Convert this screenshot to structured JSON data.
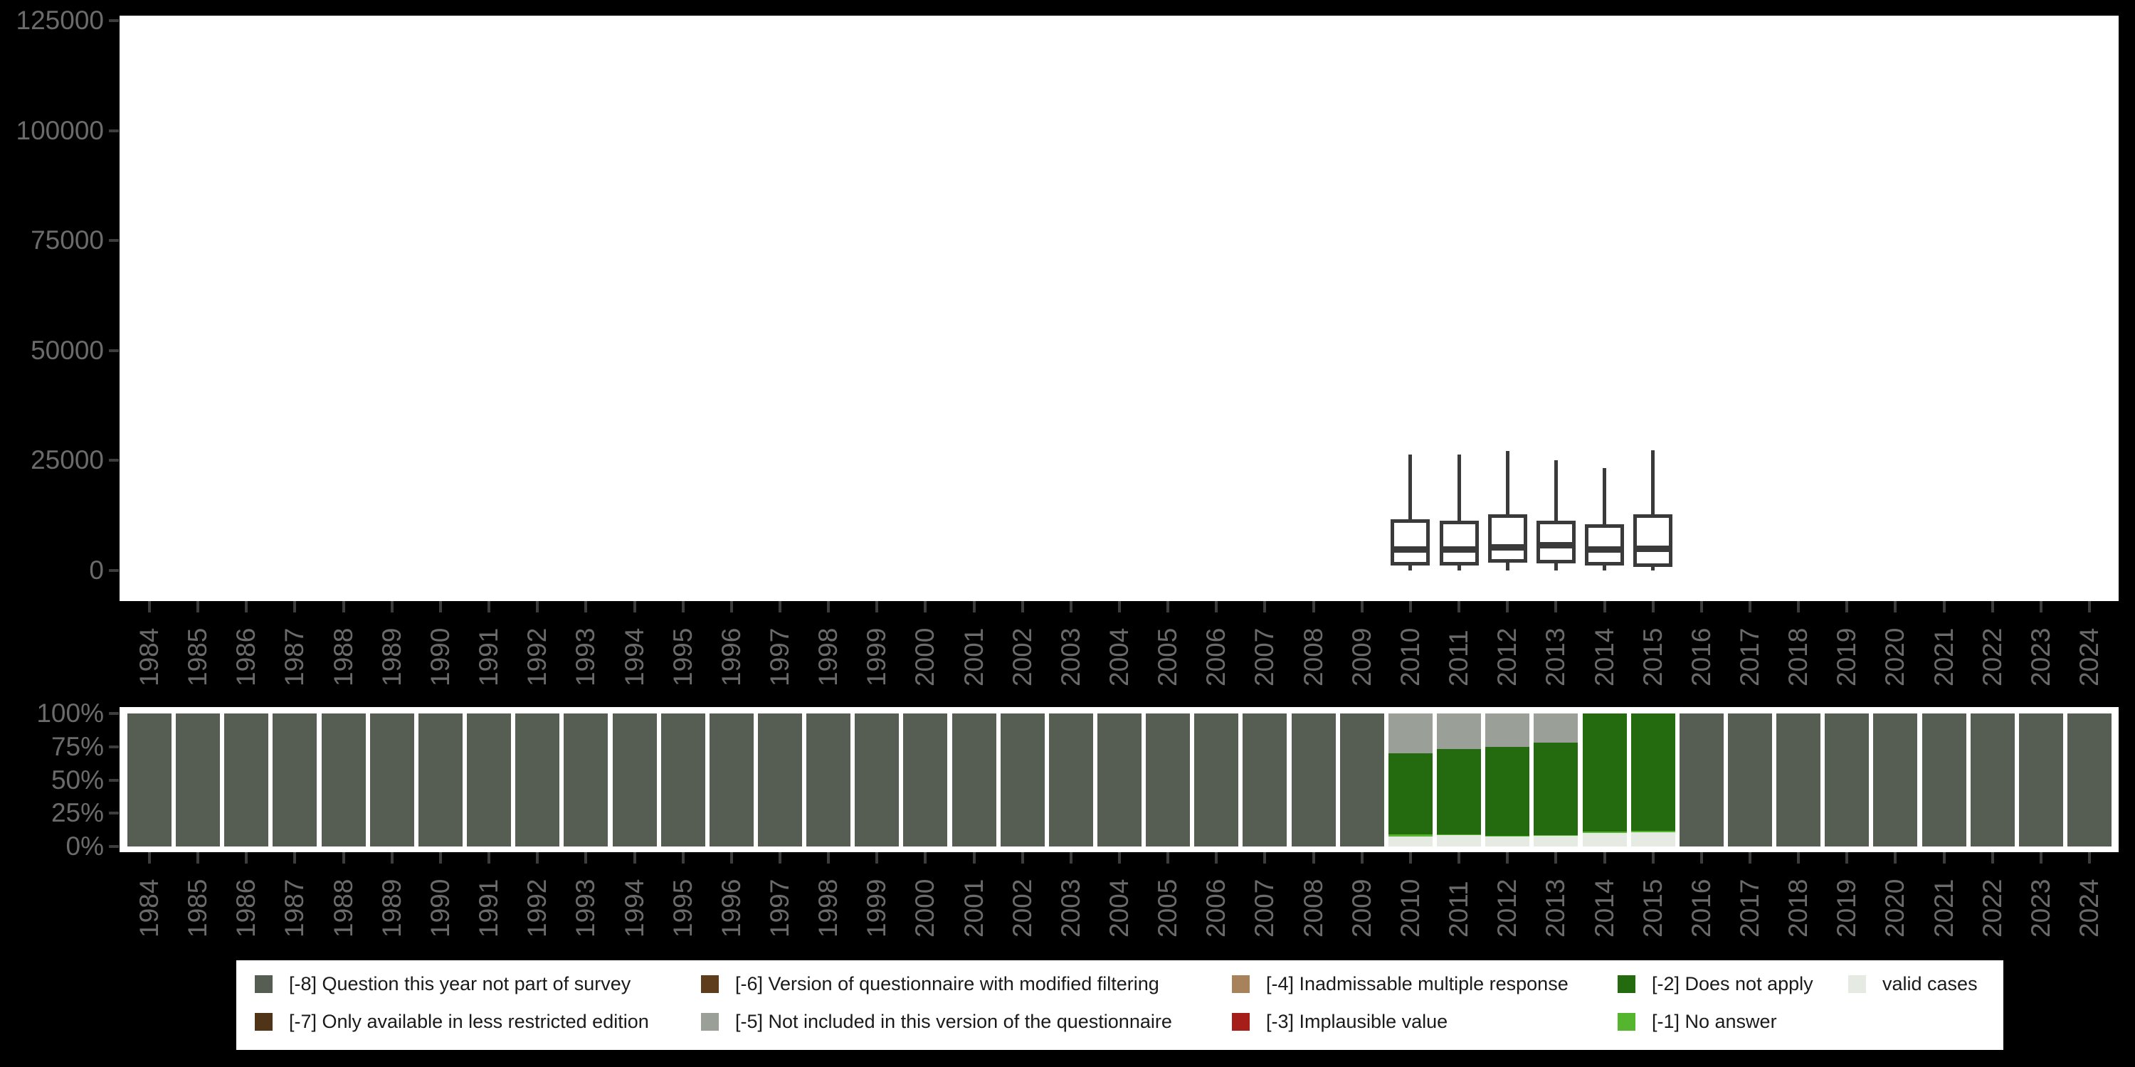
{
  "colors": {
    "background": "#000000",
    "plot_background": "#ffffff",
    "axis_label": "#6b6b6b",
    "tick": "#3d3d3d",
    "box_stroke": "#3a3a3a",
    "legend_background": "#ffffff",
    "legend_text": "#1a1a1a"
  },
  "chart_data": [
    {
      "type": "boxplot",
      "title": "",
      "xlabel": "",
      "ylabel": "",
      "y_ticks": [
        "0",
        "25000",
        "50000",
        "75000",
        "100000",
        "125000"
      ],
      "y_tick_values": [
        0,
        25000,
        50000,
        75000,
        100000,
        125000
      ],
      "ylim": [
        0,
        131000
      ],
      "grid": "off",
      "categories": [
        "1984",
        "1985",
        "1986",
        "1987",
        "1988",
        "1989",
        "1990",
        "1991",
        "1992",
        "1993",
        "1994",
        "1995",
        "1996",
        "1997",
        "1998",
        "1999",
        "2000",
        "2001",
        "2002",
        "2003",
        "2004",
        "2005",
        "2006",
        "2007",
        "2008",
        "2009",
        "2010",
        "2011",
        "2012",
        "2013",
        "2014",
        "2015",
        "2016",
        "2017",
        "2018",
        "2019",
        "2020",
        "2021",
        "2022",
        "2023",
        "2024"
      ],
      "boxes": [
        {
          "year": "2010",
          "min": 0,
          "q1": 1100,
          "median": 4700,
          "q3": 11600,
          "max": 26400
        },
        {
          "year": "2011",
          "min": 0,
          "q1": 1100,
          "median": 4700,
          "q3": 11300,
          "max": 26400
        },
        {
          "year": "2012",
          "min": 0,
          "q1": 1800,
          "median": 5200,
          "q3": 12700,
          "max": 27200
        },
        {
          "year": "2013",
          "min": 0,
          "q1": 1600,
          "median": 5800,
          "q3": 11300,
          "max": 25100
        },
        {
          "year": "2014",
          "min": 0,
          "q1": 1100,
          "median": 4700,
          "q3": 10500,
          "max": 23300
        },
        {
          "year": "2015",
          "min": 0,
          "q1": 800,
          "median": 5000,
          "q3": 12700,
          "max": 27400
        }
      ]
    },
    {
      "type": "bar",
      "subtype": "stacked-percent",
      "title": "",
      "xlabel": "",
      "ylabel": "",
      "y_ticks": [
        "0%",
        "25%",
        "50%",
        "75%",
        "100%"
      ],
      "y_tick_values": [
        0,
        25,
        50,
        75,
        100
      ],
      "ylim": [
        0,
        100
      ],
      "grid": "off",
      "stack_order": "bottom_to_top",
      "categories": [
        "1984",
        "1985",
        "1986",
        "1987",
        "1988",
        "1989",
        "1990",
        "1991",
        "1992",
        "1993",
        "1994",
        "1995",
        "1996",
        "1997",
        "1998",
        "1999",
        "2000",
        "2001",
        "2002",
        "2003",
        "2004",
        "2005",
        "2006",
        "2007",
        "2008",
        "2009",
        "2010",
        "2011",
        "2012",
        "2013",
        "2014",
        "2015",
        "2016",
        "2017",
        "2018",
        "2019",
        "2020",
        "2021",
        "2022",
        "2023",
        "2024"
      ],
      "series": [
        {
          "key": "valid",
          "name": "valid cases",
          "color": "#e5eae2",
          "values": [
            0,
            0,
            0,
            0,
            0,
            0,
            0,
            0,
            0,
            0,
            0,
            0,
            0,
            0,
            0,
            0,
            0,
            0,
            0,
            0,
            0,
            0,
            0,
            0,
            0,
            0,
            7.6,
            8.5,
            7.5,
            8.0,
            10.0,
            10.5,
            0,
            0,
            0,
            0,
            0,
            0,
            0,
            0,
            0
          ]
        },
        {
          "key": "no_answer",
          "name": "[-1] No answer",
          "color": "#56b52f",
          "values": [
            0,
            0,
            0,
            0,
            0,
            0,
            0,
            0,
            0,
            0,
            0,
            0,
            0,
            0,
            0,
            0,
            0,
            0,
            0,
            0,
            0,
            0,
            0,
            0,
            0,
            0,
            1.5,
            0.8,
            0.6,
            0.8,
            1.3,
            1.4,
            0,
            0,
            0,
            0,
            0,
            0,
            0,
            0,
            0
          ]
        },
        {
          "key": "does_not_apply",
          "name": "[-2] Does not apply",
          "color": "#246b10",
          "values": [
            0,
            0,
            0,
            0,
            0,
            0,
            0,
            0,
            0,
            0,
            0,
            0,
            0,
            0,
            0,
            0,
            0,
            0,
            0,
            0,
            0,
            0,
            0,
            0,
            0,
            0,
            60.9,
            63.7,
            66.9,
            69.2,
            88.7,
            88.1,
            0,
            0,
            0,
            0,
            0,
            0,
            0,
            0,
            0
          ]
        },
        {
          "key": "not_included",
          "name": "[-5] Not included in this version of the questionnaire",
          "color": "#9a9f97",
          "values": [
            0,
            0,
            0,
            0,
            0,
            0,
            0,
            0,
            0,
            0,
            0,
            0,
            0,
            0,
            0,
            0,
            0,
            0,
            0,
            0,
            0,
            0,
            0,
            0,
            0,
            0,
            30,
            27,
            25,
            22,
            0,
            0,
            0,
            0,
            0,
            0,
            0,
            0,
            0,
            0,
            0
          ]
        },
        {
          "key": "not_part_of_survey",
          "name": "[-8] Question this year not part of survey",
          "color": "#565e54",
          "values": [
            100,
            100,
            100,
            100,
            100,
            100,
            100,
            100,
            100,
            100,
            100,
            100,
            100,
            100,
            100,
            100,
            100,
            100,
            100,
            100,
            100,
            100,
            100,
            100,
            100,
            100,
            0,
            0,
            0,
            0,
            0,
            0,
            100,
            100,
            100,
            100,
            100,
            100,
            100,
            100,
            100
          ]
        }
      ]
    }
  ],
  "legend": {
    "columns": [
      [
        {
          "code": "-8",
          "label": "[-8] Question this year not part of survey",
          "color": "#565e54"
        },
        {
          "code": "-7",
          "label": "[-7] Only available in less restricted edition",
          "color": "#4f3418"
        }
      ],
      [
        {
          "code": "-6",
          "label": "[-6] Version of questionnaire with modified filtering",
          "color": "#5e3d1c"
        },
        {
          "code": "-5",
          "label": "[-5] Not included in this version of the questionnaire",
          "color": "#9a9f97"
        }
      ],
      [
        {
          "code": "-4",
          "label": "[-4] Inadmissable multiple response",
          "color": "#a8825a"
        },
        {
          "code": "-3",
          "label": "[-3] Implausible value",
          "color": "#a51e19"
        }
      ],
      [
        {
          "code": "-2",
          "label": "[-2] Does not apply",
          "color": "#246b10"
        },
        {
          "code": "-1",
          "label": "[-1] No answer",
          "color": "#56b52f"
        }
      ],
      [
        {
          "code": "valid",
          "label": "valid cases",
          "color": "#e5eae2"
        }
      ]
    ]
  }
}
